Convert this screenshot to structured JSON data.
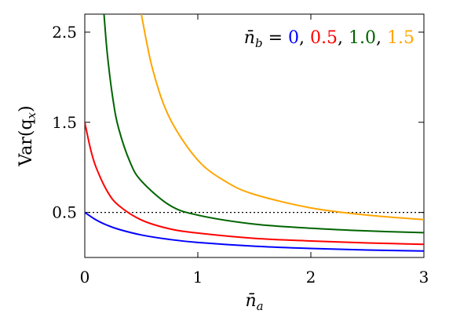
{
  "chart_data": {
    "type": "line",
    "xlabel": "n̄",
    "xlabel_sub": "a",
    "ylabel": "Var(q",
    "ylabel_sub": "x",
    "ylabel_close": ")",
    "xlim": [
      0,
      3
    ],
    "ylim": [
      0,
      2.7
    ],
    "xticks": [
      0,
      1,
      2,
      3
    ],
    "xtick_labels": [
      "0",
      "1",
      "2",
      "3"
    ],
    "yticks": [
      0.5,
      1.5,
      2.5
    ],
    "ytick_labels": [
      "0.5",
      "1.5",
      "2.5"
    ],
    "grid": false,
    "legend": {
      "placement": "top-right",
      "prefix": "n̄",
      "prefix_sub": "b",
      "equals": " = ",
      "separator": ", "
    },
    "reference_line": {
      "y": 0.5,
      "style": "dotted",
      "color": "#000000"
    },
    "series": [
      {
        "name": "0",
        "color": "#0000ff",
        "x": [
          0,
          0.1,
          0.2,
          0.3,
          0.5,
          0.75,
          1.0,
          1.5,
          2.0,
          2.5,
          3.0
        ],
        "y": [
          0.5,
          0.4167,
          0.3571,
          0.3125,
          0.25,
          0.2,
          0.1667,
          0.125,
          0.1,
          0.0833,
          0.0714
        ]
      },
      {
        "name": "0.5",
        "color": "#ff0000",
        "x": [
          0,
          0.05,
          0.1,
          0.2,
          0.3,
          0.5,
          0.75,
          1.0,
          1.5,
          2.0,
          2.5,
          3.0
        ],
        "y": [
          1.5,
          1.2083,
          1.0,
          0.7321,
          0.5769,
          0.4167,
          0.3182,
          0.2708,
          0.2125,
          0.1833,
          0.1615,
          0.1458
        ]
      },
      {
        "name": "1.0",
        "color": "#006400",
        "x": [
          0.17,
          0.2,
          0.25,
          0.3,
          0.4,
          0.5,
          0.75,
          1.0,
          1.5,
          2.0,
          2.5,
          3.0
        ],
        "y": [
          2.7,
          2.25,
          1.75,
          1.43,
          1.06,
          0.85,
          0.58,
          0.47,
          0.37,
          0.325,
          0.295,
          0.275
        ]
      },
      {
        "name": "1.5",
        "color": "#ffa500",
        "x": [
          0.5,
          0.6,
          0.75,
          1.0,
          1.25,
          1.5,
          2.0,
          2.5,
          3.0
        ],
        "y": [
          2.7,
          2.09,
          1.55,
          1.08,
          0.84,
          0.7,
          0.55,
          0.47,
          0.42
        ]
      }
    ]
  }
}
